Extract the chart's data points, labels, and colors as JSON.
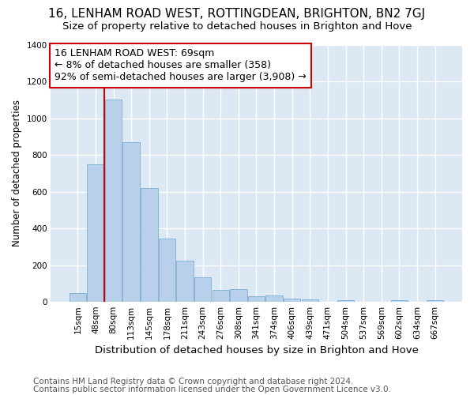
{
  "title": "16, LENHAM ROAD WEST, ROTTINGDEAN, BRIGHTON, BN2 7GJ",
  "subtitle": "Size of property relative to detached houses in Brighton and Hove",
  "xlabel": "Distribution of detached houses by size in Brighton and Hove",
  "ylabel": "Number of detached properties",
  "footnote1": "Contains HM Land Registry data © Crown copyright and database right 2024.",
  "footnote2": "Contains public sector information licensed under the Open Government Licence v3.0.",
  "categories": [
    "15sqm",
    "48sqm",
    "80sqm",
    "113sqm",
    "145sqm",
    "178sqm",
    "211sqm",
    "243sqm",
    "276sqm",
    "308sqm",
    "341sqm",
    "374sqm",
    "406sqm",
    "439sqm",
    "471sqm",
    "504sqm",
    "537sqm",
    "569sqm",
    "602sqm",
    "634sqm",
    "667sqm"
  ],
  "values": [
    50,
    750,
    1100,
    870,
    620,
    345,
    225,
    135,
    65,
    70,
    30,
    35,
    20,
    15,
    0,
    10,
    0,
    0,
    10,
    0,
    10
  ],
  "bar_color": "#b8d0ea",
  "bar_edge_color": "#7aaed4",
  "red_line_bar_index": 2,
  "annotation_line1": "16 LENHAM ROAD WEST: 69sqm",
  "annotation_line2": "← 8% of detached houses are smaller (358)",
  "annotation_line3": "92% of semi-detached houses are larger (3,908) →",
  "annotation_box_facecolor": "#ffffff",
  "annotation_box_edgecolor": "#cc0000",
  "ylim": [
    0,
    1400
  ],
  "yticks": [
    0,
    200,
    400,
    600,
    800,
    1000,
    1200,
    1400
  ],
  "plot_bg_color": "#dde8f5",
  "fig_bg_color": "#ffffff",
  "grid_color": "#ffffff",
  "title_fontsize": 11,
  "subtitle_fontsize": 9.5,
  "xlabel_fontsize": 9.5,
  "ylabel_fontsize": 8.5,
  "tick_fontsize": 7.5,
  "annotation_fontsize": 9,
  "footnote_fontsize": 7.5
}
